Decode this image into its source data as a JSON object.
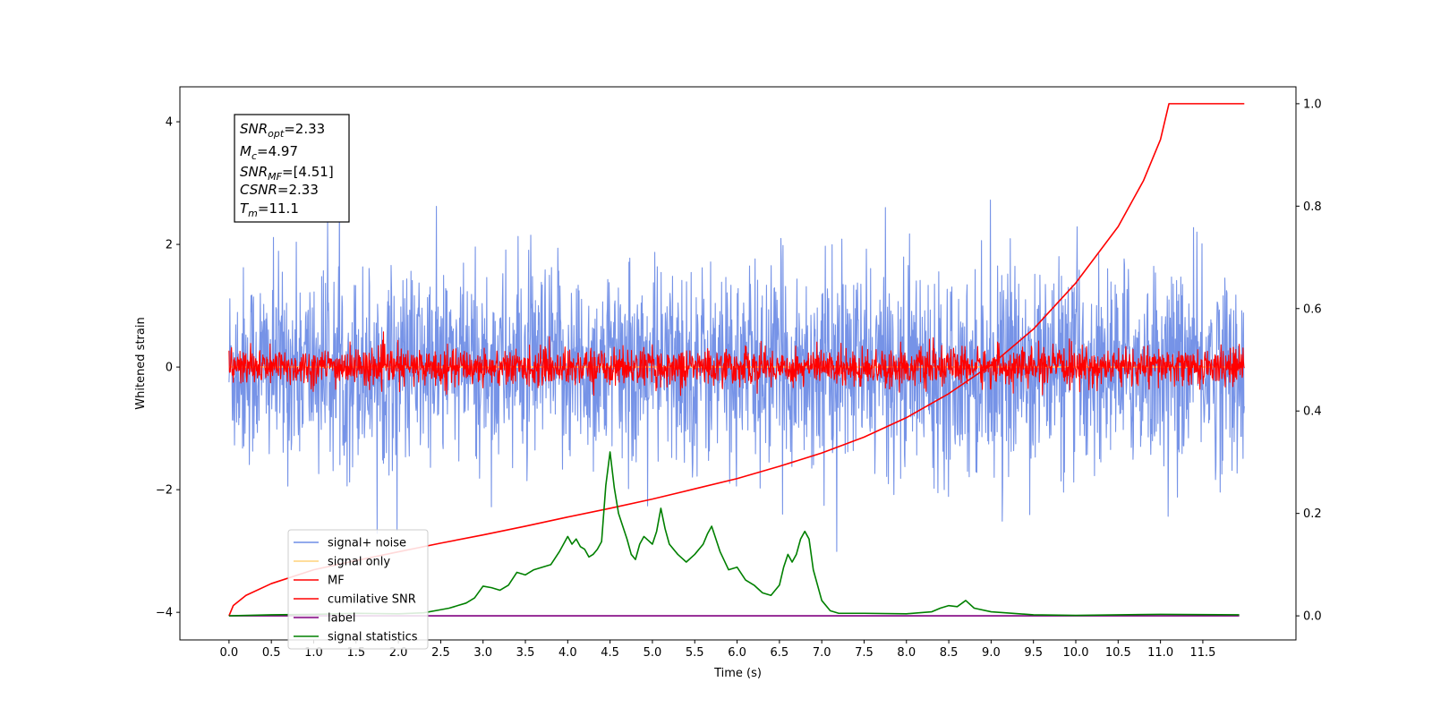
{
  "chart_data": {
    "type": "line",
    "xlabel": "Time (s)",
    "ylabel_left": "Whitened strain",
    "ylabel_right": "",
    "xlim": [
      -0.58,
      12.6
    ],
    "ylim_left": [
      -4.45,
      4.57
    ],
    "ylim_right": [
      -0.047,
      1.033
    ],
    "x_ticks": [
      "0.0",
      "0.5",
      "1.0",
      "1.5",
      "2.0",
      "2.5",
      "3.0",
      "3.5",
      "4.0",
      "4.5",
      "5.0",
      "5.5",
      "6.0",
      "6.5",
      "7.0",
      "7.5",
      "8.0",
      "8.5",
      "9.0",
      "9.5",
      "10.0",
      "10.5",
      "11.0",
      "11.5"
    ],
    "y_ticks_left": [
      "−4",
      "−2",
      "0",
      "2",
      "4"
    ],
    "y_ticks_right": [
      "0.0",
      "0.2",
      "0.4",
      "0.6",
      "0.8",
      "1.0"
    ],
    "grid": false,
    "legend_position": "lower-left",
    "info_box": {
      "snr_opt": {
        "sym": "SNR",
        "sub": "opt",
        "rest": "=2.33"
      },
      "mc": {
        "sym": "M",
        "sub": "c",
        "rest": "=4.97"
      },
      "snr_mf": {
        "sym": "SNR",
        "sub": "MF",
        "rest": "=[4.51]"
      },
      "csnr": {
        "sym": "CSNR",
        "sub": "",
        "rest": "=2.33"
      },
      "tm": {
        "sym": "T",
        "sub": "m",
        "rest": "=11.1"
      }
    },
    "series": [
      {
        "name": "signal+ noise",
        "color": "#6f8de6",
        "axis": "left",
        "kind": "noise",
        "amplitude_std": 0.8,
        "x_range": [
          0.0,
          11.99
        ]
      },
      {
        "name": "signal only",
        "color": "#ffd27a",
        "axis": "left",
        "kind": "flat",
        "value": 0
      },
      {
        "name": "MF",
        "color": "#ff0000",
        "axis": "left",
        "kind": "noise",
        "amplitude_std": 0.15,
        "x_range": [
          0.0,
          11.99
        ]
      },
      {
        "name": "cumilative SNR",
        "color": "#ff0000",
        "axis": "right",
        "x": [
          0.0,
          0.05,
          0.2,
          0.5,
          1.0,
          1.5,
          2.0,
          2.5,
          3.0,
          3.5,
          4.0,
          4.5,
          5.0,
          5.5,
          6.0,
          6.5,
          7.0,
          7.5,
          8.0,
          8.5,
          9.0,
          9.5,
          10.0,
          10.5,
          10.8,
          11.0,
          11.1,
          11.99
        ],
        "values": [
          0.0,
          0.02,
          0.04,
          0.063,
          0.09,
          0.108,
          0.125,
          0.142,
          0.158,
          0.175,
          0.193,
          0.21,
          0.228,
          0.248,
          0.268,
          0.292,
          0.318,
          0.349,
          0.387,
          0.434,
          0.49,
          0.56,
          0.65,
          0.76,
          0.85,
          0.93,
          1.0,
          1.0
        ]
      },
      {
        "name": "label",
        "color": "#800080",
        "axis": "right",
        "kind": "flat",
        "value": 0
      },
      {
        "name": "signal statistics",
        "color": "#008000",
        "axis": "right",
        "x": [
          0.0,
          0.5,
          1.0,
          1.5,
          2.0,
          2.3,
          2.5,
          2.6,
          2.7,
          2.8,
          2.9,
          3.0,
          3.1,
          3.2,
          3.3,
          3.4,
          3.5,
          3.6,
          3.7,
          3.8,
          3.9,
          4.0,
          4.05,
          4.1,
          4.15,
          4.2,
          4.25,
          4.3,
          4.35,
          4.4,
          4.45,
          4.5,
          4.55,
          4.6,
          4.65,
          4.7,
          4.75,
          4.8,
          4.85,
          4.9,
          5.0,
          5.05,
          5.1,
          5.15,
          5.2,
          5.3,
          5.4,
          5.5,
          5.6,
          5.65,
          5.7,
          5.75,
          5.8,
          5.9,
          6.0,
          6.1,
          6.2,
          6.3,
          6.4,
          6.5,
          6.55,
          6.6,
          6.65,
          6.7,
          6.75,
          6.8,
          6.85,
          6.9,
          7.0,
          7.1,
          7.2,
          7.5,
          8.0,
          8.3,
          8.4,
          8.5,
          8.6,
          8.7,
          8.8,
          9.0,
          9.5,
          10.0,
          11.0,
          11.93
        ],
        "values": [
          0.0,
          0.002,
          0.003,
          0.005,
          0.004,
          0.006,
          0.012,
          0.015,
          0.02,
          0.025,
          0.035,
          0.058,
          0.055,
          0.05,
          0.06,
          0.085,
          0.08,
          0.09,
          0.095,
          0.1,
          0.125,
          0.155,
          0.14,
          0.15,
          0.135,
          0.13,
          0.115,
          0.12,
          0.13,
          0.145,
          0.255,
          0.32,
          0.25,
          0.2,
          0.175,
          0.15,
          0.12,
          0.11,
          0.14,
          0.155,
          0.14,
          0.165,
          0.21,
          0.17,
          0.14,
          0.12,
          0.105,
          0.12,
          0.14,
          0.16,
          0.175,
          0.15,
          0.125,
          0.09,
          0.095,
          0.07,
          0.06,
          0.045,
          0.04,
          0.06,
          0.095,
          0.12,
          0.105,
          0.12,
          0.15,
          0.165,
          0.15,
          0.09,
          0.03,
          0.01,
          0.005,
          0.005,
          0.004,
          0.008,
          0.015,
          0.02,
          0.018,
          0.03,
          0.015,
          0.008,
          0.002,
          0.001,
          0.003,
          0.002
        ]
      }
    ]
  }
}
